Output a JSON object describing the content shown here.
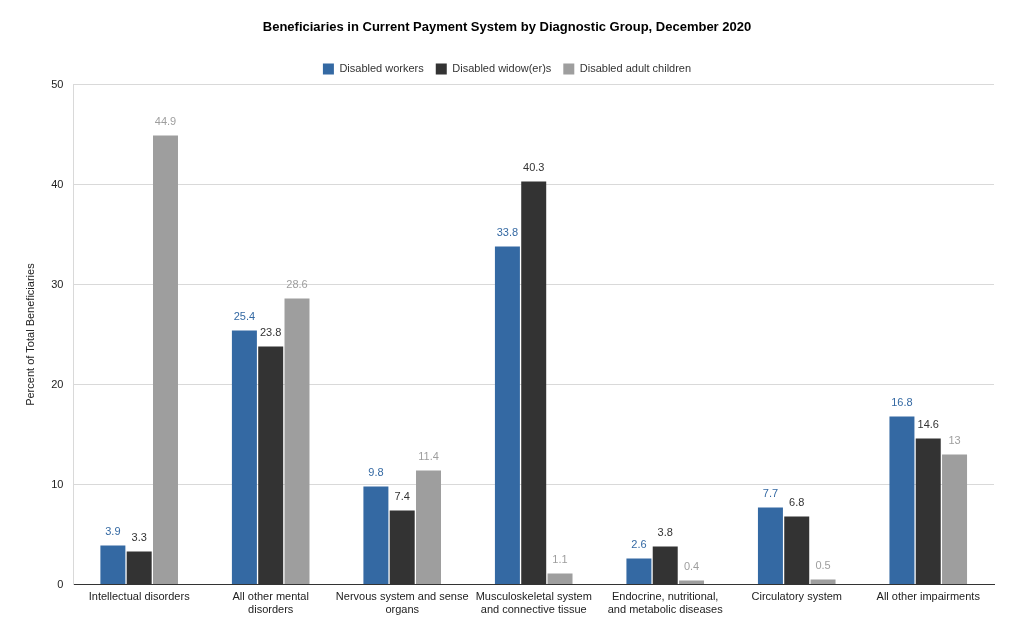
{
  "chart_data": {
    "type": "bar",
    "title": "Beneficiaries in Current Payment System by Diagnostic Group, December 2020",
    "y_label": "Percent of Total Beneficiaries",
    "categories": [
      "Intellectual disorders",
      "All other mental disorders",
      "Nervous system and sense organs",
      "Musculoskeletal system and connective tissue",
      "Endocrine, nutritional, and metabolic diseases",
      "Circulatory system",
      "All other impairments"
    ],
    "series": [
      {
        "name": "Disabled workers",
        "color": "#3469a3",
        "values": [
          3.9,
          25.4,
          9.8,
          33.8,
          2.6,
          7.7,
          16.8
        ]
      },
      {
        "name": "Disabled widow(er)s",
        "color": "#333333",
        "values": [
          3.3,
          23.8,
          7.4,
          40.3,
          3.8,
          6.8,
          14.6
        ]
      },
      {
        "name": "Disabled adult children",
        "color": "#9e9e9e",
        "values": [
          44.9,
          28.6,
          11.4,
          1.1,
          0.4,
          0.5,
          13
        ]
      }
    ],
    "ylim": [
      0,
      50
    ],
    "yticks": [
      0,
      10,
      20,
      30,
      40,
      50
    ],
    "grid": true,
    "legend": "top",
    "data_labels": true
  }
}
